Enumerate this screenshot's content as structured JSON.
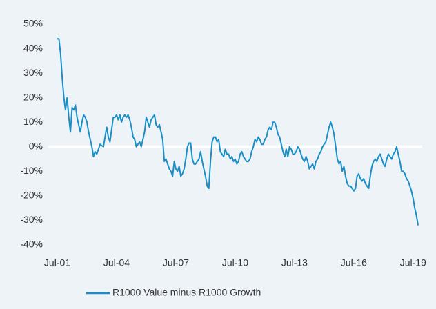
{
  "chart_data": {
    "type": "line",
    "categories": [
      "Jul-01",
      null,
      null,
      null,
      null,
      null,
      null,
      null,
      null,
      null,
      null,
      null,
      null,
      null,
      null,
      null,
      null,
      null,
      null,
      null,
      null,
      null,
      null,
      null,
      null,
      null,
      null,
      null,
      null,
      null,
      null,
      null,
      null,
      null,
      null,
      null,
      "Jul-04",
      null,
      null,
      null,
      null,
      null,
      null,
      null,
      null,
      null,
      null,
      null,
      null,
      null,
      null,
      null,
      null,
      null,
      null,
      null,
      null,
      null,
      null,
      null,
      null,
      null,
      null,
      null,
      null,
      null,
      null,
      null,
      null,
      null,
      null,
      null,
      "Jul-07",
      null,
      null,
      null,
      null,
      null,
      null,
      null,
      null,
      null,
      null,
      null,
      null,
      null,
      null,
      null,
      null,
      null,
      null,
      null,
      null,
      null,
      null,
      null,
      null,
      null,
      null,
      null,
      null,
      null,
      null,
      null,
      null,
      null,
      null,
      null,
      "Jul-10",
      null,
      null,
      null,
      null,
      null,
      null,
      null,
      null,
      null,
      null,
      null,
      null,
      null,
      null,
      null,
      null,
      null,
      null,
      null,
      null,
      null,
      null,
      null,
      null,
      null,
      null,
      null,
      null,
      null,
      null,
      null,
      null,
      null,
      null,
      null,
      "Jul-13",
      null,
      null,
      null,
      null,
      null,
      null,
      null,
      null,
      null,
      null,
      null,
      null,
      null,
      null,
      null,
      null,
      null,
      null,
      null,
      null,
      null,
      null,
      null,
      null,
      null,
      null,
      null,
      null,
      null,
      null,
      null,
      null,
      null,
      null,
      null,
      "Jul-16",
      null,
      null,
      null,
      null,
      null,
      null,
      null,
      null,
      null,
      null,
      null,
      null,
      null,
      null,
      null,
      null,
      null,
      null,
      null,
      null,
      null,
      null,
      null,
      null,
      null,
      null,
      null,
      null,
      null,
      null,
      null,
      null,
      null,
      null,
      null,
      "Jul-19",
      null,
      null,
      null
    ],
    "series": [
      {
        "name": "R1000 Value minus R1000 Growth",
        "color": "#1a8fc6",
        "values": [
          44,
          44,
          38,
          28,
          20,
          15,
          20,
          12,
          6,
          16,
          15,
          17,
          12,
          9,
          6,
          10,
          13,
          12,
          10,
          6,
          3,
          0,
          -4,
          -2,
          -3,
          -1,
          1,
          0.5,
          0,
          4,
          8,
          4,
          2,
          7,
          12,
          12,
          13,
          11,
          13,
          10,
          12,
          13,
          12,
          13,
          11,
          8,
          4,
          3,
          0,
          1,
          2,
          0,
          3,
          6,
          12,
          10,
          8,
          11,
          12,
          13,
          9,
          8,
          9,
          6,
          3,
          -6,
          -5,
          -7,
          -9,
          -10,
          -12,
          -6,
          -9,
          -10,
          -8,
          -12,
          -11,
          -9,
          -5,
          0,
          1.5,
          1.5,
          -5,
          -7,
          -7,
          -6,
          -5,
          -2,
          -6,
          -9,
          -12,
          -16,
          -17,
          -6,
          2,
          4,
          4,
          2,
          3,
          -2,
          -3,
          -4,
          -1,
          -3,
          -3,
          -5,
          -4,
          -6,
          -5,
          -7,
          -6,
          -3,
          -2,
          -4,
          -5,
          -6,
          -6,
          -5,
          -2,
          0,
          3,
          2,
          4,
          3,
          1,
          1,
          3,
          4,
          7,
          8,
          7,
          10,
          10,
          8,
          5,
          4,
          1,
          -2,
          -4,
          -1,
          -4,
          0,
          -1,
          -3,
          -3,
          -2,
          0,
          -1,
          -3,
          -5,
          -6,
          -4,
          -6,
          -9,
          -8,
          -7,
          -9,
          -6,
          -5,
          -3,
          -2,
          0,
          1,
          2,
          5,
          8,
          10,
          8,
          5,
          0,
          -5,
          -7,
          -6,
          -10,
          -8,
          -12,
          -15,
          -16,
          -16,
          -17,
          -18,
          -17,
          -12,
          -11,
          -13,
          -14,
          -13,
          -15,
          -16,
          -17,
          -12,
          -8,
          -6,
          -5,
          -6,
          -4,
          -3,
          -5,
          -7,
          -8,
          -5,
          -3,
          -4,
          -5,
          -3,
          -2,
          0,
          -3,
          -6,
          -10,
          -10,
          -11,
          -13,
          -14,
          -16,
          -18,
          -21,
          -25,
          -28,
          -32
        ]
      }
    ],
    "ylim": [
      -40,
      50
    ],
    "yticks": [
      {
        "value": 50,
        "label": "50%"
      },
      {
        "value": 40,
        "label": "40%"
      },
      {
        "value": 30,
        "label": "30%"
      },
      {
        "value": 20,
        "label": "20%"
      },
      {
        "value": 10,
        "label": "10%"
      },
      {
        "value": 0,
        "label": "0%"
      },
      {
        "value": -10,
        "label": "-10%"
      },
      {
        "value": -20,
        "label": "-20%"
      },
      {
        "value": -30,
        "label": "-30%"
      },
      {
        "value": -40,
        "label": "-40%"
      }
    ],
    "legend": "bottom"
  }
}
